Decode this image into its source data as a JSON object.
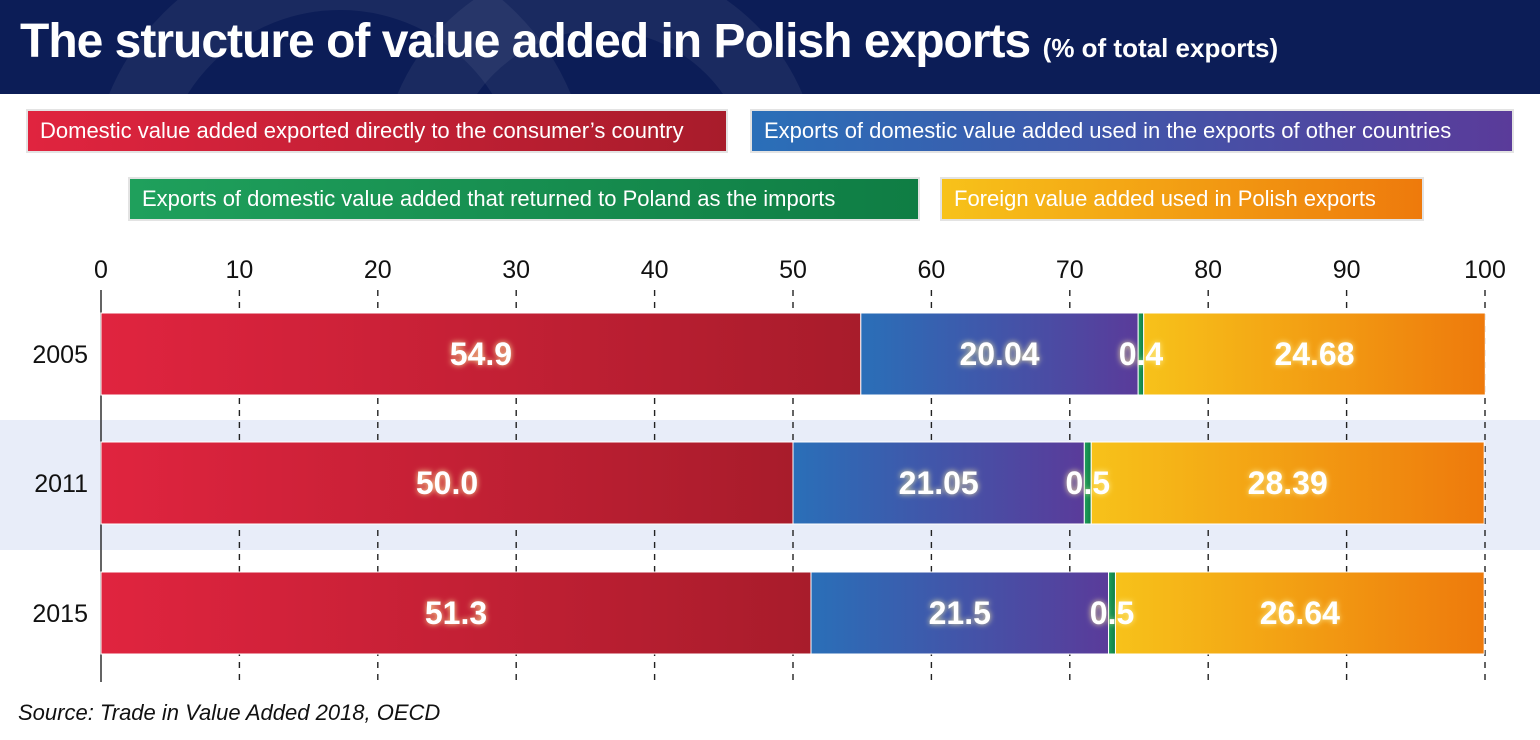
{
  "header": {
    "title": "The structure of value added in Polish exports",
    "subtitle": "(% of total exports)"
  },
  "legend": [
    {
      "label": "Domestic value added exported directly to the consumer’s country",
      "color_start": "#e0243f",
      "color_end": "#a81c2b"
    },
    {
      "label": "Exports of domestic value added used in the exports of other countries",
      "color_start": "#2a6fb8",
      "color_end": "#5a3b9a"
    },
    {
      "label": "Exports of domestic value added that returned to Poland as the imports",
      "color_start": "#1fa05c",
      "color_end": "#0f7d44"
    },
    {
      "label": "Foreign value added used in Polish exports",
      "color_start": "#f7c21a",
      "color_end": "#ee7a0c"
    }
  ],
  "chart_data": {
    "type": "bar",
    "orientation": "horizontal",
    "stacked": true,
    "categories": [
      "2005",
      "2011",
      "2015"
    ],
    "series": [
      {
        "name": "Domestic value added exported directly to the consumer’s country",
        "values": [
          54.9,
          50.0,
          51.3
        ],
        "labels": [
          "54.9",
          "50.0",
          "51.3"
        ]
      },
      {
        "name": "Exports of domestic value added used in the exports of other countries",
        "values": [
          20.04,
          21.05,
          21.5
        ],
        "labels": [
          "20.04",
          "21.05",
          "21.5"
        ]
      },
      {
        "name": "Exports of domestic value added that returned to Poland as the imports",
        "values": [
          0.4,
          0.5,
          0.5
        ],
        "labels": [
          "0.4",
          "0.5",
          "0.5"
        ]
      },
      {
        "name": "Foreign value added used in Polish exports",
        "values": [
          24.68,
          28.39,
          26.64
        ],
        "labels": [
          "24.68",
          "28.39",
          "26.64"
        ]
      }
    ],
    "xlim": [
      0,
      100
    ],
    "xticks": [
      "0",
      "10",
      "20",
      "30",
      "40",
      "50",
      "60",
      "70",
      "80",
      "90",
      "100"
    ],
    "grid": true,
    "legend_position": "top"
  },
  "source": "Source: Trade in Value Added 2018, OECD"
}
